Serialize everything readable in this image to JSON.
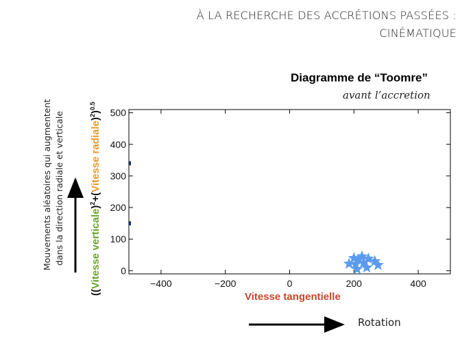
{
  "slide": {
    "title_line1": "À LA RECHERCHE DES ACCRÉTIONS PASSÉES :",
    "title_line2": "CINÉMATIQUE"
  },
  "side_caption": {
    "line1": "Mouvements aléatoires qui augmentent",
    "line2": "dans la direction radiale et verticale"
  },
  "rotation_label": "Rotation",
  "colors": {
    "star": "#5b9bef",
    "point": "#1a237e",
    "xlabel": "#c8462a",
    "green": "#6aa42c",
    "orange": "#e89a2c"
  },
  "chart_data": {
    "type": "scatter",
    "title": "Diagramme de “Toomre”",
    "annotation": "avant l’accretion",
    "xlabel": "Vitesse tangentielle",
    "ylabel_parts": {
      "open": "((",
      "green": "Vitesse verticale",
      "mid": ")",
      "sup1": "2",
      "plus": "+(",
      "orange": "Vitesse radiale",
      "close": ")",
      "sup2": "2",
      "end": ")",
      "sup3": "0.5"
    },
    "xlim": [
      -500,
      500
    ],
    "ylim": [
      -10,
      510
    ],
    "xticks": [
      -400,
      -200,
      0,
      200,
      400
    ],
    "yticks": [
      0,
      100,
      200,
      300,
      400,
      500
    ],
    "grid": false,
    "series": [
      {
        "marker": "star",
        "x": [
          200,
          225,
          215,
          245,
          185,
          230,
          205,
          265,
          210,
          240,
          275
        ],
        "y": [
          40,
          45,
          35,
          38,
          22,
          25,
          20,
          30,
          5,
          10,
          18
        ]
      },
      {
        "marker": "point",
        "x": [
          -500,
          -500
        ],
        "y": [
          340,
          150
        ]
      }
    ]
  }
}
